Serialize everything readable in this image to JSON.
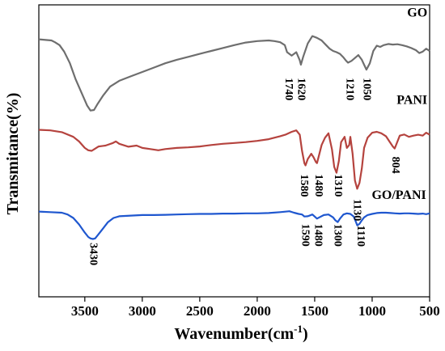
{
  "chart_data": {
    "type": "line",
    "title": "",
    "xlabel": "Wavenumber(cm",
    "xlabel_sup": "-1",
    "xlabel_close": ")",
    "ylabel": "Transmitance(%)",
    "xlim": [
      3900,
      500
    ],
    "x_reversed": true,
    "ylim": [
      0,
      1
    ],
    "x_ticks": [
      3500,
      3000,
      2500,
      2000,
      1500,
      1000,
      500
    ],
    "grid": false,
    "series": [
      {
        "name": "GO",
        "color": "#6e6e6e",
        "x": [
          3900,
          3790,
          3760,
          3720,
          3680,
          3630,
          3580,
          3530,
          3480,
          3450,
          3420,
          3390,
          3340,
          3280,
          3200,
          3100,
          3000,
          2900,
          2800,
          2700,
          2600,
          2500,
          2400,
          2300,
          2200,
          2100,
          2000,
          1900,
          1850,
          1800,
          1760,
          1740,
          1700,
          1660,
          1630,
          1620,
          1600,
          1560,
          1520,
          1480,
          1440,
          1400,
          1370,
          1340,
          1310,
          1280,
          1250,
          1230,
          1210,
          1180,
          1150,
          1120,
          1090,
          1070,
          1050,
          1020,
          990,
          960,
          930,
          900,
          860,
          820,
          780,
          740,
          700,
          660,
          620,
          590,
          560,
          530,
          500
        ],
        "y": [
          0.882,
          0.878,
          0.872,
          0.862,
          0.84,
          0.8,
          0.745,
          0.7,
          0.655,
          0.638,
          0.64,
          0.66,
          0.69,
          0.72,
          0.74,
          0.755,
          0.77,
          0.785,
          0.8,
          0.812,
          0.822,
          0.832,
          0.842,
          0.852,
          0.862,
          0.871,
          0.876,
          0.878,
          0.876,
          0.872,
          0.862,
          0.838,
          0.826,
          0.838,
          0.81,
          0.795,
          0.822,
          0.868,
          0.893,
          0.887,
          0.878,
          0.862,
          0.85,
          0.842,
          0.838,
          0.832,
          0.82,
          0.81,
          0.802,
          0.808,
          0.818,
          0.828,
          0.812,
          0.795,
          0.778,
          0.8,
          0.842,
          0.86,
          0.856,
          0.862,
          0.866,
          0.864,
          0.865,
          0.862,
          0.858,
          0.852,
          0.845,
          0.835,
          0.84,
          0.85,
          0.842
        ]
      },
      {
        "name": "PANI",
        "color": "#b5433e",
        "x": [
          3900,
          3800,
          3700,
          3600,
          3550,
          3500,
          3470,
          3440,
          3420,
          3380,
          3320,
          3260,
          3230,
          3200,
          3120,
          3050,
          3000,
          2930,
          2860,
          2800,
          2700,
          2600,
          2500,
          2400,
          2300,
          2200,
          2100,
          2000,
          1900,
          1800,
          1750,
          1700,
          1660,
          1630,
          1610,
          1590,
          1580,
          1560,
          1530,
          1510,
          1490,
          1480,
          1460,
          1440,
          1410,
          1380,
          1350,
          1330,
          1310,
          1290,
          1270,
          1240,
          1220,
          1200,
          1190,
          1170,
          1150,
          1130,
          1110,
          1090,
          1070,
          1040,
          1000,
          960,
          920,
          880,
          850,
          820,
          804,
          790,
          760,
          720,
          680,
          640,
          600,
          560,
          530,
          500
        ],
        "y": [
          0.572,
          0.57,
          0.564,
          0.548,
          0.532,
          0.51,
          0.502,
          0.5,
          0.505,
          0.515,
          0.518,
          0.526,
          0.532,
          0.524,
          0.514,
          0.518,
          0.51,
          0.506,
          0.502,
          0.506,
          0.51,
          0.512,
          0.515,
          0.52,
          0.524,
          0.527,
          0.53,
          0.534,
          0.54,
          0.55,
          0.556,
          0.565,
          0.57,
          0.555,
          0.5,
          0.458,
          0.45,
          0.472,
          0.49,
          0.478,
          0.462,
          0.458,
          0.488,
          0.52,
          0.545,
          0.56,
          0.505,
          0.445,
          0.425,
          0.465,
          0.53,
          0.548,
          0.51,
          0.52,
          0.548,
          0.49,
          0.398,
          0.37,
          0.39,
          0.44,
          0.51,
          0.545,
          0.562,
          0.565,
          0.56,
          0.55,
          0.532,
          0.515,
          0.508,
          0.522,
          0.552,
          0.556,
          0.548,
          0.552,
          0.555,
          0.552,
          0.562,
          0.555
        ]
      },
      {
        "name": "GO/PANI",
        "color": "#1f57cf",
        "x": [
          3900,
          3800,
          3700,
          3650,
          3600,
          3550,
          3500,
          3470,
          3450,
          3430,
          3410,
          3380,
          3340,
          3300,
          3250,
          3200,
          3100,
          3000,
          2900,
          2800,
          2700,
          2600,
          2500,
          2400,
          2300,
          2200,
          2100,
          2000,
          1900,
          1800,
          1720,
          1680,
          1640,
          1610,
          1590,
          1560,
          1520,
          1500,
          1480,
          1460,
          1420,
          1380,
          1340,
          1320,
          1300,
          1280,
          1250,
          1220,
          1190,
          1160,
          1140,
          1130,
          1110,
          1090,
          1070,
          1040,
          1000,
          960,
          920,
          880,
          840,
          800,
          760,
          720,
          680,
          640,
          600,
          560,
          530,
          500
        ],
        "y": [
          0.292,
          0.29,
          0.288,
          0.282,
          0.27,
          0.248,
          0.22,
          0.205,
          0.2,
          0.198,
          0.2,
          0.215,
          0.235,
          0.255,
          0.27,
          0.276,
          0.278,
          0.28,
          0.28,
          0.281,
          0.282,
          0.283,
          0.284,
          0.284,
          0.285,
          0.285,
          0.286,
          0.286,
          0.287,
          0.29,
          0.293,
          0.288,
          0.284,
          0.282,
          0.275,
          0.276,
          0.282,
          0.275,
          0.268,
          0.272,
          0.28,
          0.282,
          0.272,
          0.262,
          0.256,
          0.268,
          0.282,
          0.286,
          0.284,
          0.275,
          0.255,
          0.245,
          0.25,
          0.262,
          0.272,
          0.28,
          0.284,
          0.287,
          0.288,
          0.288,
          0.287,
          0.286,
          0.285,
          0.286,
          0.286,
          0.285,
          0.284,
          0.285,
          0.283,
          0.286
        ]
      }
    ],
    "series_labels": [
      {
        "text": "GO",
        "x": 520,
        "y": 0.96
      },
      {
        "text": "PANI",
        "x": 520,
        "y": 0.66
      },
      {
        "text": "GO/PANI",
        "x": 530,
        "y": 0.335
      }
    ],
    "peak_labels": [
      {
        "text": "1740",
        "x": 1730,
        "y": 0.75
      },
      {
        "text": "1620",
        "x": 1620,
        "y": 0.75
      },
      {
        "text": "1210",
        "x": 1200,
        "y": 0.75
      },
      {
        "text": "1050",
        "x": 1050,
        "y": 0.75
      },
      {
        "text": "1580",
        "x": 1595,
        "y": 0.42
      },
      {
        "text": "1480",
        "x": 1470,
        "y": 0.42
      },
      {
        "text": "1310",
        "x": 1300,
        "y": 0.42
      },
      {
        "text": "1130",
        "x": 1135,
        "y": 0.335
      },
      {
        "text": "804",
        "x": 800,
        "y": 0.48
      },
      {
        "text": "3430",
        "x": 3430,
        "y": 0.185
      },
      {
        "text": "1590",
        "x": 1585,
        "y": 0.25
      },
      {
        "text": "1480",
        "x": 1475,
        "y": 0.25
      },
      {
        "text": "1300",
        "x": 1305,
        "y": 0.25
      },
      {
        "text": "1110",
        "x": 1105,
        "y": 0.245
      }
    ]
  }
}
